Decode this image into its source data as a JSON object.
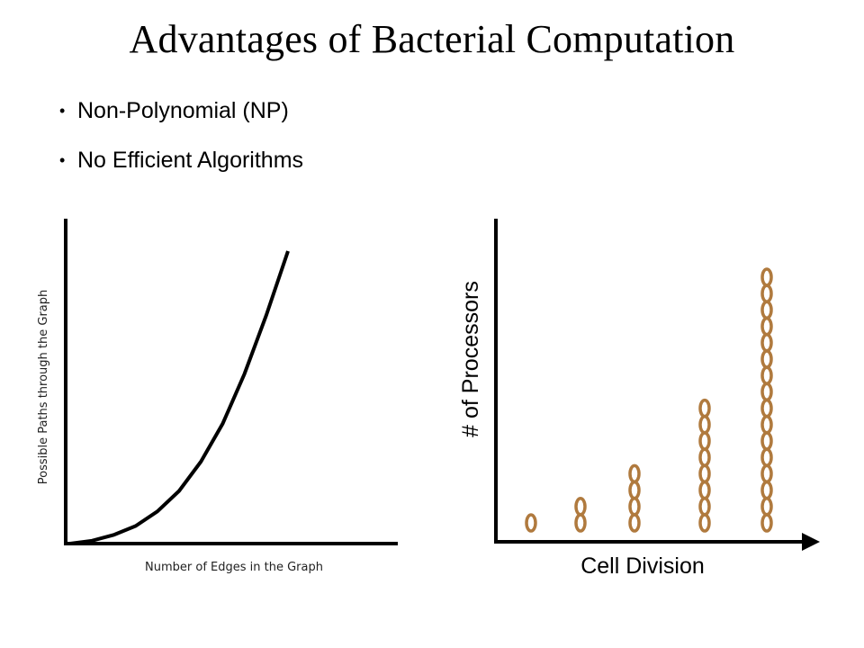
{
  "slide": {
    "title": "Advantages of Bacterial Computation",
    "bullets": [
      {
        "text": "Non-Polynomial (NP)"
      },
      {
        "text": "No Efficient Algorithms"
      }
    ]
  },
  "chart_data": [
    {
      "type": "line",
      "title": "",
      "xlabel": "Number of Edges in the Graph",
      "ylabel": "Possible Paths through the Graph",
      "series": [
        {
          "x": [
            0,
            0.1,
            0.2,
            0.3,
            0.4,
            0.5,
            0.6,
            0.7,
            0.8,
            0.9,
            1.0
          ],
          "values": [
            0,
            0.01,
            0.03,
            0.06,
            0.11,
            0.18,
            0.28,
            0.41,
            0.58,
            0.78,
            1.0
          ]
        }
      ],
      "grid": false,
      "legend": "none"
    },
    {
      "type": "scatter",
      "title": "",
      "xlabel": "Cell Division",
      "ylabel": "# of Processors",
      "categories": [
        "1",
        "2",
        "3",
        "4",
        "5"
      ],
      "values": [
        1,
        2,
        4,
        8,
        16
      ],
      "marker_color": "#b07a3e",
      "grid": false,
      "legend": "none"
    }
  ]
}
